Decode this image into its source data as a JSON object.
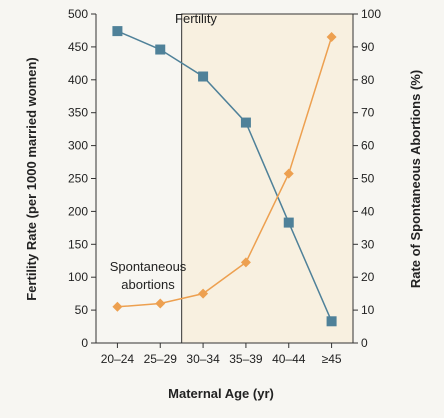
{
  "chart_data": {
    "type": "line",
    "categories": [
      "20–24",
      "25–29",
      "30–34",
      "35–39",
      "40–44",
      "≥45"
    ],
    "xlabel": "Maternal Age (yr)",
    "ylabel_left": "Fertility Rate (per 1000 married women)",
    "ylabel_right": "Rate of Spontaneous Abortions (%)",
    "ylim_left": [
      0,
      500
    ],
    "ylim_right": [
      0,
      100
    ],
    "yticks_left": [
      0,
      50,
      100,
      150,
      200,
      250,
      300,
      350,
      400,
      450,
      500
    ],
    "yticks_right": [
      0,
      10,
      20,
      30,
      40,
      50,
      60,
      70,
      80,
      90,
      100
    ],
    "grid": false,
    "shaded_region": {
      "from_category": "30–34",
      "to_category": "≥45",
      "color": "#f8f0e0"
    },
    "series": [
      {
        "name": "Fertility",
        "axis": "left",
        "marker": "square",
        "color": "#4f8199",
        "values": [
          474,
          446,
          405,
          335,
          183,
          33
        ]
      },
      {
        "name": "Spontaneous abortions",
        "axis": "right",
        "marker": "diamond",
        "color": "#eda050",
        "values": [
          11,
          12,
          15,
          24.5,
          51.5,
          93
        ]
      }
    ],
    "annotations": [
      {
        "series": "Fertility",
        "lines": [
          "Fertility"
        ]
      },
      {
        "series": "Spontaneous abortions",
        "lines": [
          "Spontaneous",
          "abortions"
        ]
      }
    ]
  }
}
